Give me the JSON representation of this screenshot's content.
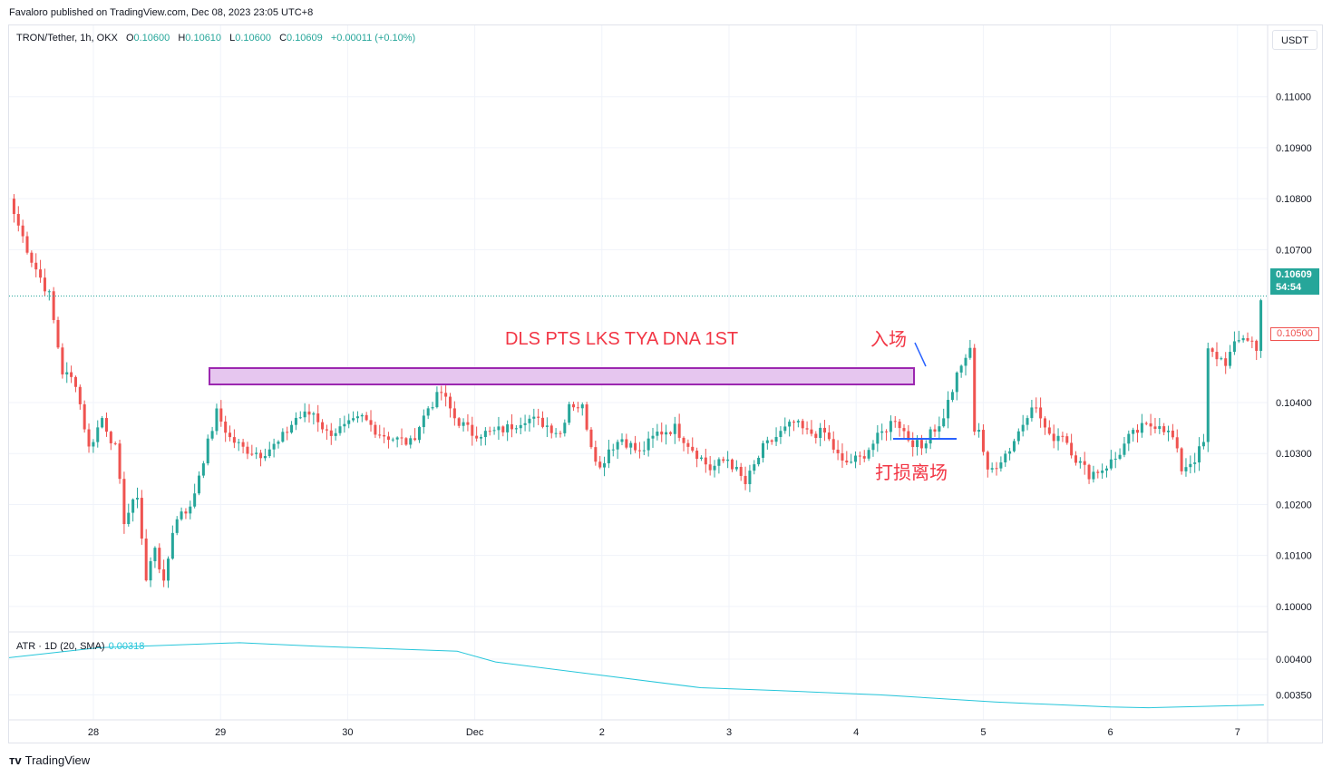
{
  "header": {
    "published": "Favaloro published on TradingView.com, Dec 08, 2023 23:05 UTC+8"
  },
  "legend": {
    "symbol": "TRON/Tether, 1h, OKX",
    "o_label": "O",
    "o": "0.10600",
    "h_label": "H",
    "h": "0.10610",
    "l_label": "L",
    "l": "0.10600",
    "c_label": "C",
    "c": "0.10609",
    "change": "+0.00011 (+0.10%)"
  },
  "price_axis": {
    "unit": "USDT",
    "last_price": "0.10609",
    "countdown": "54:54",
    "marked_level": "0.10500"
  },
  "annotations": {
    "zone_label": "DLS PTS LKS TYA DNA 1ST",
    "entry_label": "入场",
    "stop_label": "打损离场"
  },
  "atr": {
    "label": "ATR · 1D (20, SMA)",
    "value": "0.00318"
  },
  "footer": {
    "brand": "TradingView",
    "logo": "tradingview-logo-icon"
  },
  "colors": {
    "up": "#26a69a",
    "down": "#ef5350",
    "zone_fill": "#e6c6ef",
    "zone_border": "#9c27b0",
    "atr": "#26c6da",
    "annotation": "#f23645",
    "stop_line": "#2962ff"
  },
  "chart_data": [
    {
      "type": "candlestick",
      "ylim": [
        0.0995,
        0.1114
      ],
      "y_ticks": [
        "0.11000",
        "0.10900",
        "0.10800",
        "0.10700",
        "0.10400",
        "0.10300",
        "0.10200",
        "0.10100",
        "0.10000"
      ],
      "x_tick_labels": [
        "28",
        "29",
        "30",
        "Dec",
        "2",
        "3",
        "4",
        "5",
        "6",
        "7"
      ],
      "bars_per_day": 24,
      "first_day_position": 2.8,
      "last_price": 0.10609,
      "close_path": [
        [
          0,
          0.1077
        ],
        [
          4,
          0.1068
        ],
        [
          8,
          0.1061
        ],
        [
          11,
          0.1046
        ],
        [
          14,
          0.1044
        ],
        [
          17,
          0.1031
        ],
        [
          20,
          0.1037
        ],
        [
          23,
          0.1031
        ],
        [
          25,
          0.1017
        ],
        [
          27,
          0.102
        ],
        [
          28,
          0.1022
        ],
        [
          30,
          0.1005
        ],
        [
          32,
          0.1012
        ],
        [
          34,
          0.1004
        ],
        [
          36,
          0.1015
        ],
        [
          38,
          0.1019
        ],
        [
          40,
          0.1019
        ],
        [
          42,
          0.1026
        ],
        [
          44,
          0.1032
        ],
        [
          46,
          0.1038
        ],
        [
          49,
          0.1033
        ],
        [
          52,
          0.1031
        ],
        [
          56,
          0.103
        ],
        [
          60,
          0.1032
        ],
        [
          64,
          0.1037
        ],
        [
          68,
          0.1038
        ],
        [
          71,
          0.1034
        ],
        [
          75,
          0.1035
        ],
        [
          79,
          0.1037
        ],
        [
          83,
          0.1034
        ],
        [
          86,
          0.1033
        ],
        [
          90,
          0.1032
        ],
        [
          94,
          0.1039
        ],
        [
          97,
          0.1042
        ],
        [
          100,
          0.1037
        ],
        [
          104,
          0.1034
        ],
        [
          108,
          0.1034
        ],
        [
          112,
          0.1035
        ],
        [
          116,
          0.1037
        ],
        [
          120,
          0.1036
        ],
        [
          124,
          0.1034
        ],
        [
          126,
          0.104
        ],
        [
          129,
          0.1039
        ],
        [
          131,
          0.1032
        ],
        [
          133,
          0.1027
        ],
        [
          135,
          0.1031
        ],
        [
          138,
          0.1033
        ],
        [
          142,
          0.103
        ],
        [
          146,
          0.1034
        ],
        [
          150,
          0.1035
        ],
        [
          154,
          0.1031
        ],
        [
          158,
          0.1027
        ],
        [
          162,
          0.1029
        ],
        [
          166,
          0.1024
        ],
        [
          170,
          0.1031
        ],
        [
          174,
          0.1034
        ],
        [
          177,
          0.1036
        ],
        [
          180,
          0.1034
        ],
        [
          184,
          0.1034
        ],
        [
          188,
          0.1028
        ],
        [
          192,
          0.1029
        ],
        [
          196,
          0.1033
        ],
        [
          200,
          0.1037
        ],
        [
          203,
          0.1033
        ],
        [
          206,
          0.1031
        ],
        [
          208,
          0.1035
        ],
        [
          210,
          0.1035
        ],
        [
          212,
          0.104
        ],
        [
          214,
          0.1045
        ],
        [
          216,
          0.1049
        ],
        [
          217,
          0.105
        ],
        [
          218,
          0.1035
        ],
        [
          219,
          0.1035
        ],
        [
          221,
          0.1026
        ],
        [
          223,
          0.1028
        ],
        [
          226,
          0.1031
        ],
        [
          229,
          0.1036
        ],
        [
          231,
          0.104
        ],
        [
          233,
          0.1037
        ],
        [
          235,
          0.1033
        ],
        [
          238,
          0.1034
        ],
        [
          241,
          0.1029
        ],
        [
          244,
          0.1026
        ],
        [
          247,
          0.1027
        ],
        [
          250,
          0.1029
        ],
        [
          253,
          0.1033
        ],
        [
          256,
          0.1035
        ],
        [
          260,
          0.1036
        ],
        [
          263,
          0.1033
        ],
        [
          265,
          0.1027
        ],
        [
          268,
          0.1029
        ],
        [
          270,
          0.1032
        ],
        [
          271,
          0.105
        ],
        [
          273,
          0.1049
        ],
        [
          275,
          0.1048
        ],
        [
          277,
          0.1051
        ],
        [
          279,
          0.1053
        ],
        [
          281,
          0.1052
        ],
        [
          282,
          0.105
        ],
        [
          283,
          0.10609
        ]
      ]
    },
    {
      "type": "line",
      "title": "ATR · 1D (20, SMA)",
      "ylim": [
        0.00315,
        0.00438
      ],
      "y_ticks": [
        "0.00400",
        "0.00350"
      ],
      "x": [
        0,
        7,
        18,
        24,
        35,
        38,
        54,
        60,
        68,
        77,
        86,
        89,
        98
      ],
      "values": [
        0.00402,
        0.00416,
        0.00423,
        0.00418,
        0.00411,
        0.00396,
        0.0036,
        0.00356,
        0.0035,
        0.0034,
        0.00333,
        0.00332,
        0.00336
      ]
    }
  ]
}
